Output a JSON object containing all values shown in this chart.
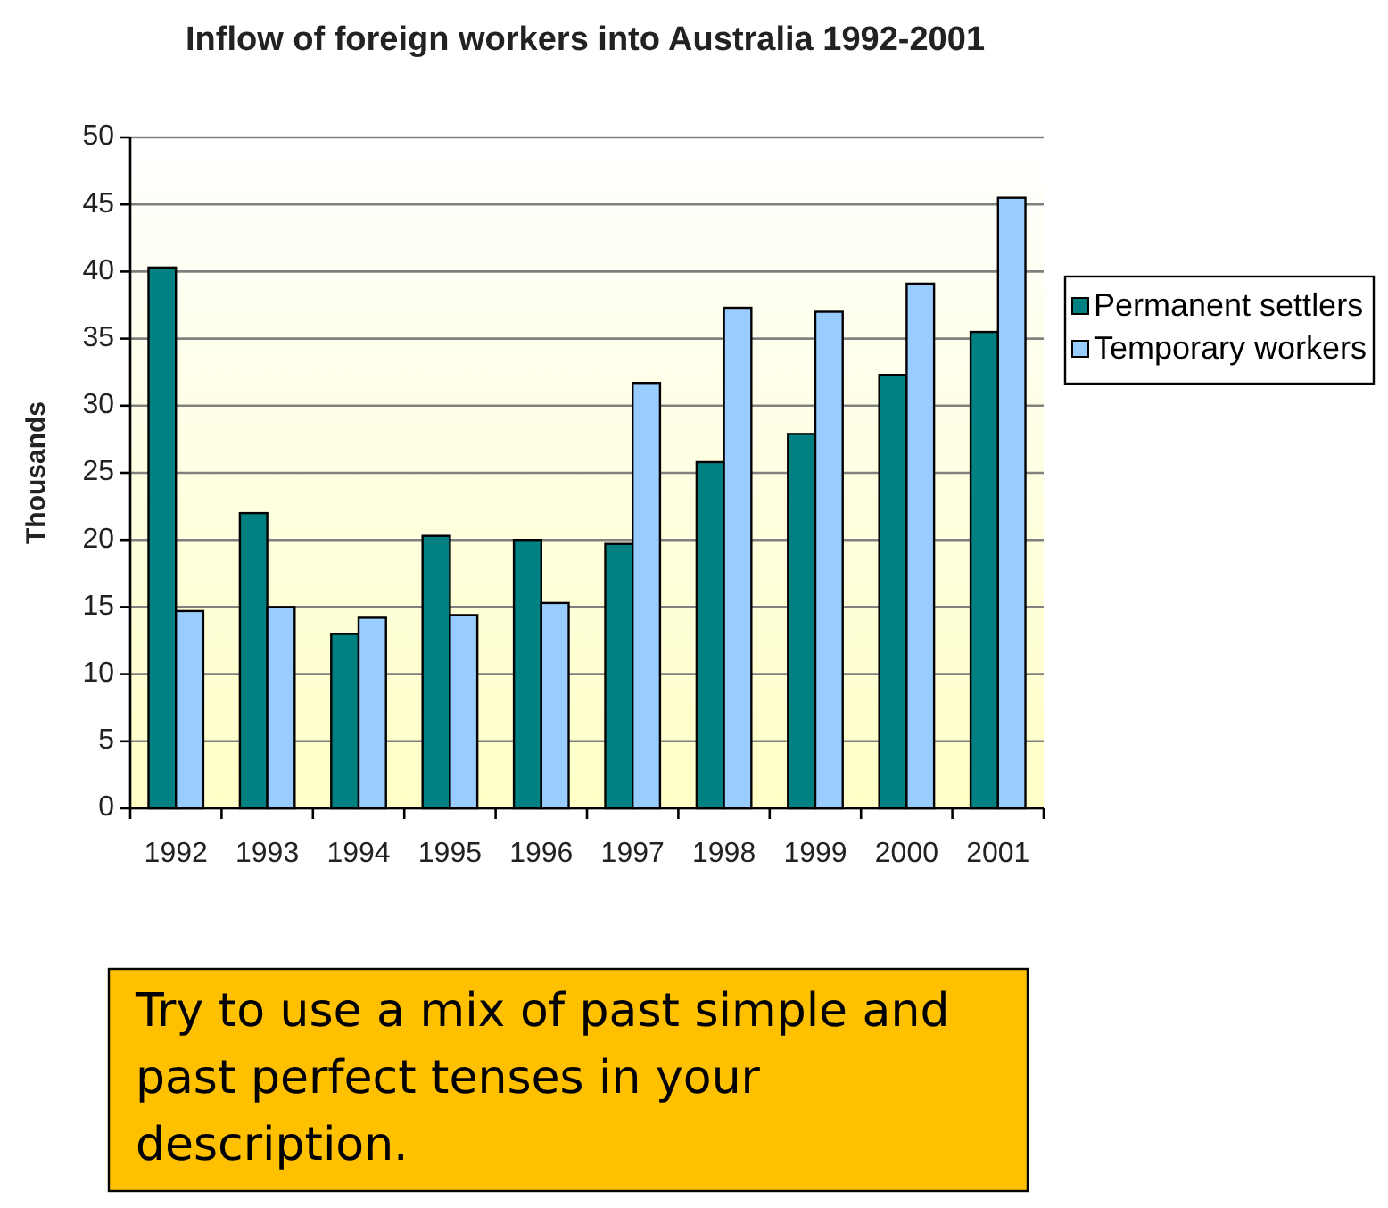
{
  "chart_data": {
    "type": "bar",
    "title": "Inflow of foreign workers into Australia 1992-2001",
    "ylabel": "Thousands",
    "categories": [
      "1992",
      "1993",
      "1994",
      "1995",
      "1996",
      "1997",
      "1998",
      "1999",
      "2000",
      "2001"
    ],
    "series": [
      {
        "name": "Permanent settlers",
        "color": "#008080",
        "values": [
          40.3,
          22.0,
          13.0,
          20.3,
          20.0,
          19.7,
          25.8,
          27.9,
          32.3,
          35.5
        ]
      },
      {
        "name": "Temporary workers",
        "color": "#99ccff",
        "values": [
          14.7,
          15.0,
          14.2,
          14.4,
          15.3,
          31.7,
          37.3,
          37.0,
          39.1,
          45.5
        ]
      }
    ],
    "ylim": [
      0,
      50
    ],
    "yticks": [
      0,
      5,
      10,
      15,
      20,
      25,
      30,
      35,
      40,
      45,
      50
    ],
    "grid": "y",
    "legend": "right",
    "annotations": [
      "Try to use a mix of past simple and past perfect tenses in your description."
    ]
  }
}
